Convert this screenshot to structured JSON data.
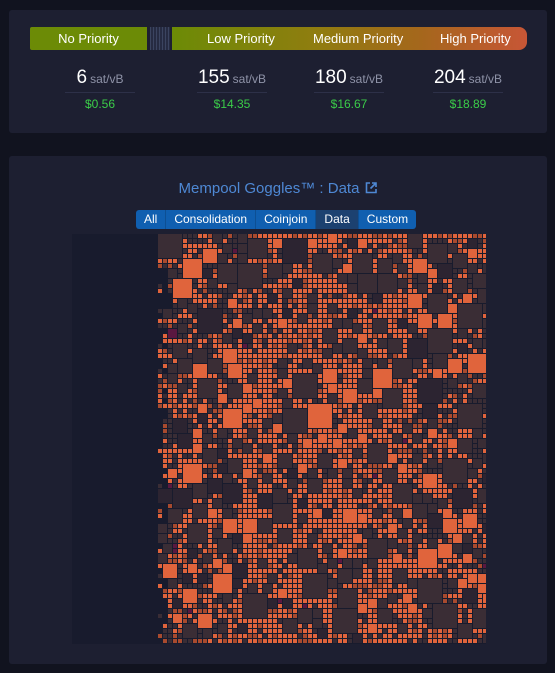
{
  "fees": {
    "priority_labels": {
      "no": "No Priority",
      "low": "Low Priority",
      "medium": "Medium Priority",
      "high": "High Priority"
    },
    "unit": "sat/vB",
    "items": [
      {
        "rate": "6",
        "usd": "$0.56"
      },
      {
        "rate": "155",
        "usd": "$14.35"
      },
      {
        "rate": "180",
        "usd": "$16.67"
      },
      {
        "rate": "204",
        "usd": "$18.89"
      }
    ]
  },
  "goggles": {
    "title": "Mempool Goggles™ : Data",
    "filters": [
      "All",
      "Consolidation",
      "Coinjoin",
      "Data",
      "Custom"
    ],
    "active_filter": "Data",
    "colors": {
      "highlight": "#e0643c",
      "highlight_dim": "#a84a2e",
      "muted": "#3a2d35",
      "muted_dark": "#2c2431",
      "accent": "#5a1840"
    }
  }
}
